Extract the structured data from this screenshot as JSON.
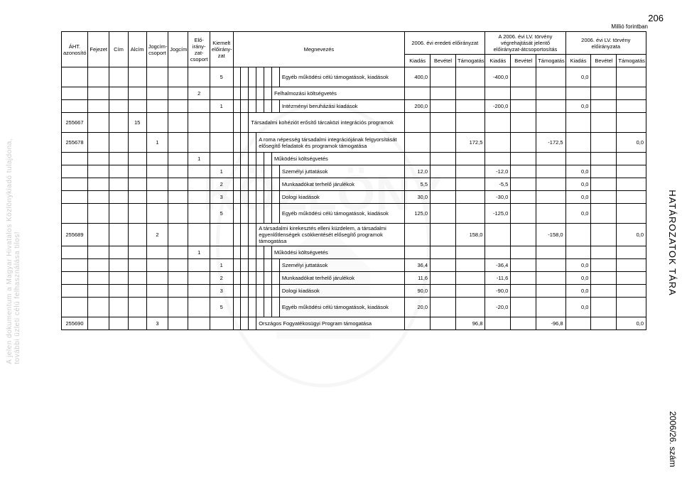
{
  "notice_left": "A jelen dokumentum a Magyar Hivatalos Közlönykiadó tulajdona, további üzleti célú felhasználása tilos!",
  "page_number": "206",
  "side_right": "HATÁROZATOK TÁRA",
  "side_bottom": "2006/26. szám",
  "unit": "Millió forintban",
  "h": {
    "aht": "ÁHT. azonosító",
    "fejezet": "Fejezet",
    "cim": "Cím",
    "alcim": "Alcím",
    "jogcimcs": "Jogcím-csoport",
    "jogcim": "Jogcím",
    "eloiranycs": "Elő-irány-zat-csoport",
    "kiemelt": "Kiemelt előirány-zat",
    "megnevezes": "Megnevezés",
    "g1": "2006. évi eredeti előirányzat",
    "g2": "A 2006. évi LV. törvény végrehajtását jelentő előirányzat-átcsoportosítás",
    "g3": "2006. évi LV. törvény előirányzata",
    "k": "Kiadás",
    "b": "Bevétel",
    "t": "Támogatás"
  },
  "rows": [
    {
      "kiemelt": "5",
      "s6": "",
      "meg": "Egyéb működési célú támogatások, kiadások",
      "v": [
        "400,0",
        "",
        "",
        "-400,0",
        "",
        "",
        "0,0",
        "",
        ""
      ],
      "tall": true
    },
    {
      "eloiranycs": "2",
      "s5": "",
      "meg": "Felhalmozási költségvetés",
      "v": [
        "",
        "",
        "",
        "",
        "",
        "",
        "",
        "",
        ""
      ]
    },
    {
      "kiemelt": "1",
      "s6": "",
      "meg": "Intézményi beruházási kiadások",
      "v": [
        "200,0",
        "",
        "",
        "-200,0",
        "",
        "",
        "0,0",
        "",
        ""
      ]
    },
    {
      "aht": "255667",
      "alcim": "15",
      "s2": "",
      "meg": "Társadalmi kohéziót erősítő tárcaközi integrációs programok",
      "v": [
        "",
        "",
        "",
        "",
        "",
        "",
        "",
        "",
        ""
      ],
      "tall": true
    },
    {
      "aht": "255678",
      "jogcimcs": "1",
      "s3": "",
      "meg": "A roma népesség társadalmi integrációjának felgyorsítását elősegítő feladatok és programok támogatása",
      "v": [
        "",
        "",
        "172,5",
        "",
        "",
        "-172,5",
        "",
        "",
        "0,0"
      ],
      "tall": true
    },
    {
      "eloiranycs": "1",
      "s5": "",
      "meg": "Működési költségvetés",
      "v": [
        "",
        "",
        "",
        "",
        "",
        "",
        "",
        "",
        ""
      ]
    },
    {
      "kiemelt": "1",
      "s6": "",
      "meg": "Személyi juttatások",
      "v": [
        "12,0",
        "",
        "",
        "-12,0",
        "",
        "",
        "0,0",
        "",
        ""
      ]
    },
    {
      "kiemelt": "2",
      "s6": "",
      "meg": "Munkaadókat terhelő járulékok",
      "v": [
        "5,5",
        "",
        "",
        "-5,5",
        "",
        "",
        "0,0",
        "",
        ""
      ]
    },
    {
      "kiemelt": "3",
      "s6": "",
      "meg": "Dologi kiadások",
      "v": [
        "30,0",
        "",
        "",
        "-30,0",
        "",
        "",
        "0,0",
        "",
        ""
      ]
    },
    {
      "kiemelt": "5",
      "s6": "",
      "meg": "Egyéb működési célú támogatások, kiadások",
      "v": [
        "125,0",
        "",
        "",
        "-125,0",
        "",
        "",
        "0,0",
        "",
        ""
      ],
      "tall": true
    },
    {
      "aht": "255689",
      "jogcimcs": "2",
      "s3": "",
      "meg": "A társadalmi kirekesztés elleni küzdelem, a társadalmi egyenlőtlenségek csökkentését elősegítő programok támogatása",
      "v": [
        "",
        "",
        "158,0",
        "",
        "",
        "-158,0",
        "",
        "",
        "0,0"
      ],
      "tall": true
    },
    {
      "eloiranycs": "1",
      "s5": "",
      "meg": "Működési költségvetés",
      "v": [
        "",
        "",
        "",
        "",
        "",
        "",
        "",
        "",
        ""
      ]
    },
    {
      "kiemelt": "1",
      "s6": "",
      "meg": "Személyi juttatások",
      "v": [
        "36,4",
        "",
        "",
        "-36,4",
        "",
        "",
        "0,0",
        "",
        ""
      ]
    },
    {
      "kiemelt": "2",
      "s6": "",
      "meg": "Munkaadókat terhelő járulékok",
      "v": [
        "11,6",
        "",
        "",
        "-11,6",
        "",
        "",
        "0,0",
        "",
        ""
      ]
    },
    {
      "kiemelt": "3",
      "s6": "",
      "meg": "Dologi kiadások",
      "v": [
        "90,0",
        "",
        "",
        "-90,0",
        "",
        "",
        "0,0",
        "",
        ""
      ]
    },
    {
      "kiemelt": "5",
      "s6": "",
      "meg": "Egyéb működési célú támogatások, kiadások",
      "v": [
        "20,0",
        "",
        "",
        "-20,0",
        "",
        "",
        "0,0",
        "",
        ""
      ],
      "tall": true
    },
    {
      "aht": "255690",
      "jogcimcs": "3",
      "s3": "",
      "meg": "Országos Fogyatékosügyi Program támogatása",
      "v": [
        "",
        "",
        "96,8",
        "",
        "",
        "-96,8",
        "",
        "",
        "0,0"
      ]
    }
  ]
}
